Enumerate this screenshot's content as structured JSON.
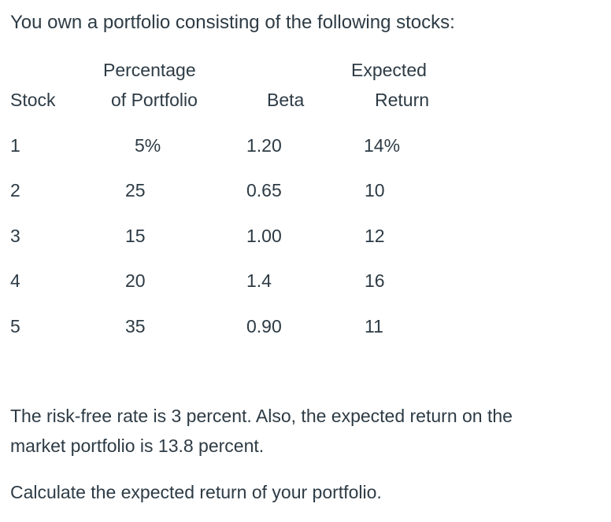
{
  "intro": "You own a portfolio consisting of the following stocks:",
  "table": {
    "headers": {
      "stock": "Stock",
      "percentage_line1": "Percentage",
      "percentage_line2": "of Portfolio",
      "beta": "Beta",
      "expected_line1": "Expected",
      "expected_line2": "Return"
    },
    "rows": [
      {
        "stock": "1",
        "percentage": "5%",
        "beta": "1.20",
        "expected_return": "14%"
      },
      {
        "stock": "2",
        "percentage": "25",
        "beta": "0.65",
        "expected_return": "10"
      },
      {
        "stock": "3",
        "percentage": "15",
        "beta": "1.00",
        "expected_return": "12"
      },
      {
        "stock": "4",
        "percentage": "20",
        "beta": "1.4",
        "expected_return": "16"
      },
      {
        "stock": "5",
        "percentage": "35",
        "beta": "0.90",
        "expected_return": "11"
      }
    ]
  },
  "paragraph1": {
    "line1": "The risk-free rate is 3 percent. Also, the expected return on the",
    "line2": "market portfolio is 13.8 percent."
  },
  "question": "Calculate the expected return of your portfolio."
}
